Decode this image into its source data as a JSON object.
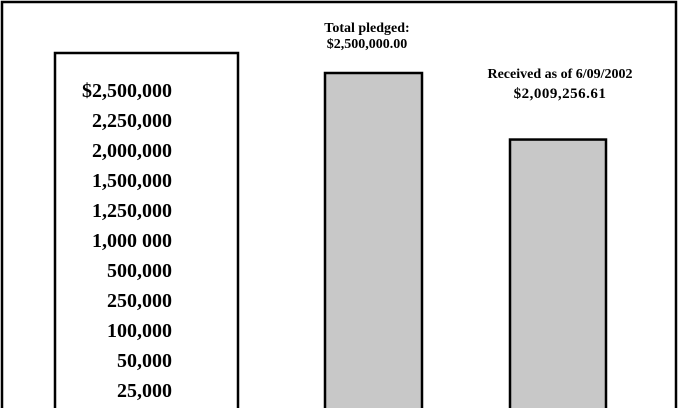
{
  "chart_data": {
    "type": "bar",
    "title": "",
    "xlabel": "",
    "ylabel": "",
    "scale_labels": [
      "$2,500,000",
      "2,250,000",
      "2,000,000",
      "1,500,000",
      "1,250,000",
      "1,000 000",
      "500,000",
      "250,000",
      "100,000",
      "50,000",
      "25,000"
    ],
    "categories": [
      "Total pledged",
      "Received as of 6/09/2002"
    ],
    "values": [
      2500000.0,
      2009256.61
    ],
    "ylim": [
      0,
      2500000
    ],
    "bar_captions": [
      {
        "line1": "Total pledged:",
        "line2": "$2,500,000.00"
      },
      {
        "line1": "Received as of 6/09/2002",
        "line2": "$2,009,256.61"
      }
    ],
    "bar_fill": "#c8c8c8",
    "border_color": "#000000"
  }
}
